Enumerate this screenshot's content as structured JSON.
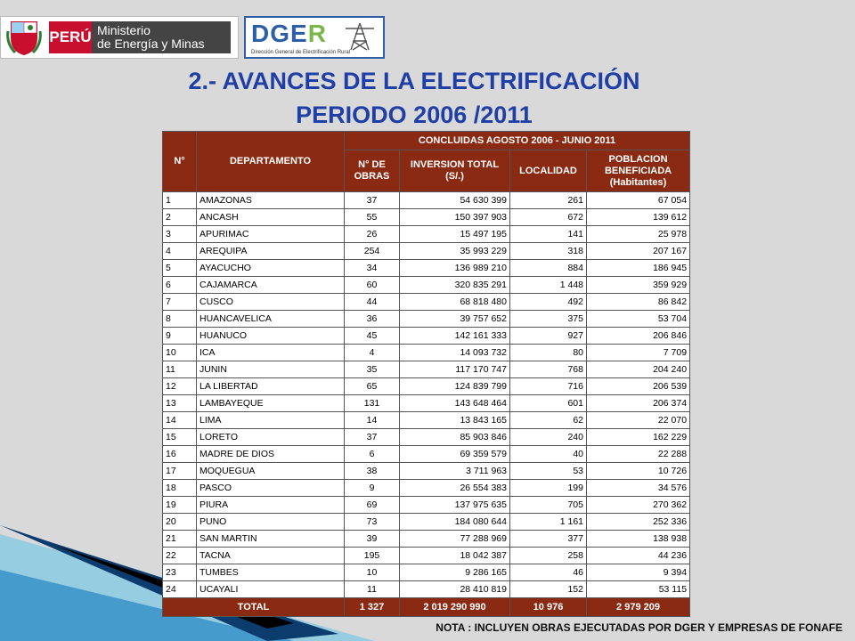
{
  "header": {
    "peru_label": "PERÚ",
    "ministry_line1": "Ministerio",
    "ministry_line2": "de Energía y Minas",
    "dger_letters": "DGE",
    "dger_last": "R",
    "dger_subtitle": "Dirección General de Electrificación Rural"
  },
  "title": {
    "line1": "2.- AVANCES DE LA ELECTRIFICACIÓN",
    "line2": "PERIODO 2006 /2011"
  },
  "table": {
    "col_no": "N°",
    "col_departamento": "DEPARTAMENTO",
    "group_header": "CONCLUIDAS AGOSTO 2006 - JUNIO 2011",
    "col_obras": "N° DE OBRAS",
    "col_inversion": "INVERSION TOTAL (S/.)",
    "col_localidad": "LOCALIDAD",
    "col_poblacion": "POBLACION BENEFICIADA",
    "col_poblacion_unit": "(Habitantes)",
    "rows": [
      {
        "n": "1",
        "dep": "AMAZONAS",
        "obras": "37",
        "inv": "54 630 399",
        "loc": "261",
        "pob": "67 054"
      },
      {
        "n": "2",
        "dep": "ANCASH",
        "obras": "55",
        "inv": "150 397 903",
        "loc": "672",
        "pob": "139 612"
      },
      {
        "n": "3",
        "dep": "APURIMAC",
        "obras": "26",
        "inv": "15 497 195",
        "loc": "141",
        "pob": "25 978"
      },
      {
        "n": "4",
        "dep": "AREQUIPA",
        "obras": "254",
        "inv": "35 993 229",
        "loc": "318",
        "pob": "207 167"
      },
      {
        "n": "5",
        "dep": "AYACUCHO",
        "obras": "34",
        "inv": "136 989 210",
        "loc": "884",
        "pob": "186 945"
      },
      {
        "n": "6",
        "dep": "CAJAMARCA",
        "obras": "60",
        "inv": "320 835 291",
        "loc": "1 448",
        "pob": "359 929"
      },
      {
        "n": "7",
        "dep": "CUSCO",
        "obras": "44",
        "inv": "68 818 480",
        "loc": "492",
        "pob": "86 842"
      },
      {
        "n": "8",
        "dep": "HUANCAVELICA",
        "obras": "36",
        "inv": "39 757 652",
        "loc": "375",
        "pob": "53 704"
      },
      {
        "n": "9",
        "dep": "HUANUCO",
        "obras": "45",
        "inv": "142 161 333",
        "loc": "927",
        "pob": "206 846"
      },
      {
        "n": "10",
        "dep": "ICA",
        "obras": "4",
        "inv": "14 093 732",
        "loc": "80",
        "pob": "7 709"
      },
      {
        "n": "11",
        "dep": "JUNIN",
        "obras": "35",
        "inv": "117 170 747",
        "loc": "768",
        "pob": "204 240"
      },
      {
        "n": "12",
        "dep": "LA LIBERTAD",
        "obras": "65",
        "inv": "124 839 799",
        "loc": "716",
        "pob": "206 539"
      },
      {
        "n": "13",
        "dep": "LAMBAYEQUE",
        "obras": "131",
        "inv": "143 648 464",
        "loc": "601",
        "pob": "206 374"
      },
      {
        "n": "14",
        "dep": "LIMA",
        "obras": "14",
        "inv": "13 843 165",
        "loc": "62",
        "pob": "22 070"
      },
      {
        "n": "15",
        "dep": "LORETO",
        "obras": "37",
        "inv": "85 903 846",
        "loc": "240",
        "pob": "162 229"
      },
      {
        "n": "16",
        "dep": "MADRE DE DIOS",
        "obras": "6",
        "inv": "69 359 579",
        "loc": "40",
        "pob": "22 288"
      },
      {
        "n": "17",
        "dep": "MOQUEGUA",
        "obras": "38",
        "inv": "3 711 963",
        "loc": "53",
        "pob": "10 726"
      },
      {
        "n": "18",
        "dep": "PASCO",
        "obras": "9",
        "inv": "26 554 383",
        "loc": "199",
        "pob": "34 576"
      },
      {
        "n": "19",
        "dep": "PIURA",
        "obras": "69",
        "inv": "137 975 635",
        "loc": "705",
        "pob": "270 362"
      },
      {
        "n": "20",
        "dep": "PUNO",
        "obras": "73",
        "inv": "184 080 644",
        "loc": "1 161",
        "pob": "252 336"
      },
      {
        "n": "21",
        "dep": "SAN MARTIN",
        "obras": "39",
        "inv": "77 288 969",
        "loc": "377",
        "pob": "138 938"
      },
      {
        "n": "22",
        "dep": "TACNA",
        "obras": "195",
        "inv": "18 042 387",
        "loc": "258",
        "pob": "44 236"
      },
      {
        "n": "23",
        "dep": "TUMBES",
        "obras": "10",
        "inv": "9 286 165",
        "loc": "46",
        "pob": "9 394"
      },
      {
        "n": "24",
        "dep": "UCAYALI",
        "obras": "11",
        "inv": "28 410 819",
        "loc": "152",
        "pob": "53 115"
      }
    ],
    "total": {
      "label": "TOTAL",
      "obras": "1 327",
      "inv": "2 019 290 990",
      "loc": "10 976",
      "pob": "2 979 209"
    }
  },
  "note": "NOTA : INCLUYEN OBRAS EJECUTADAS POR DGER Y EMPRESAS DE FONAFE",
  "colors": {
    "header_bg": "#8b2a12",
    "title": "#1f3fa6",
    "accent_blue": "#2d5fa8"
  }
}
